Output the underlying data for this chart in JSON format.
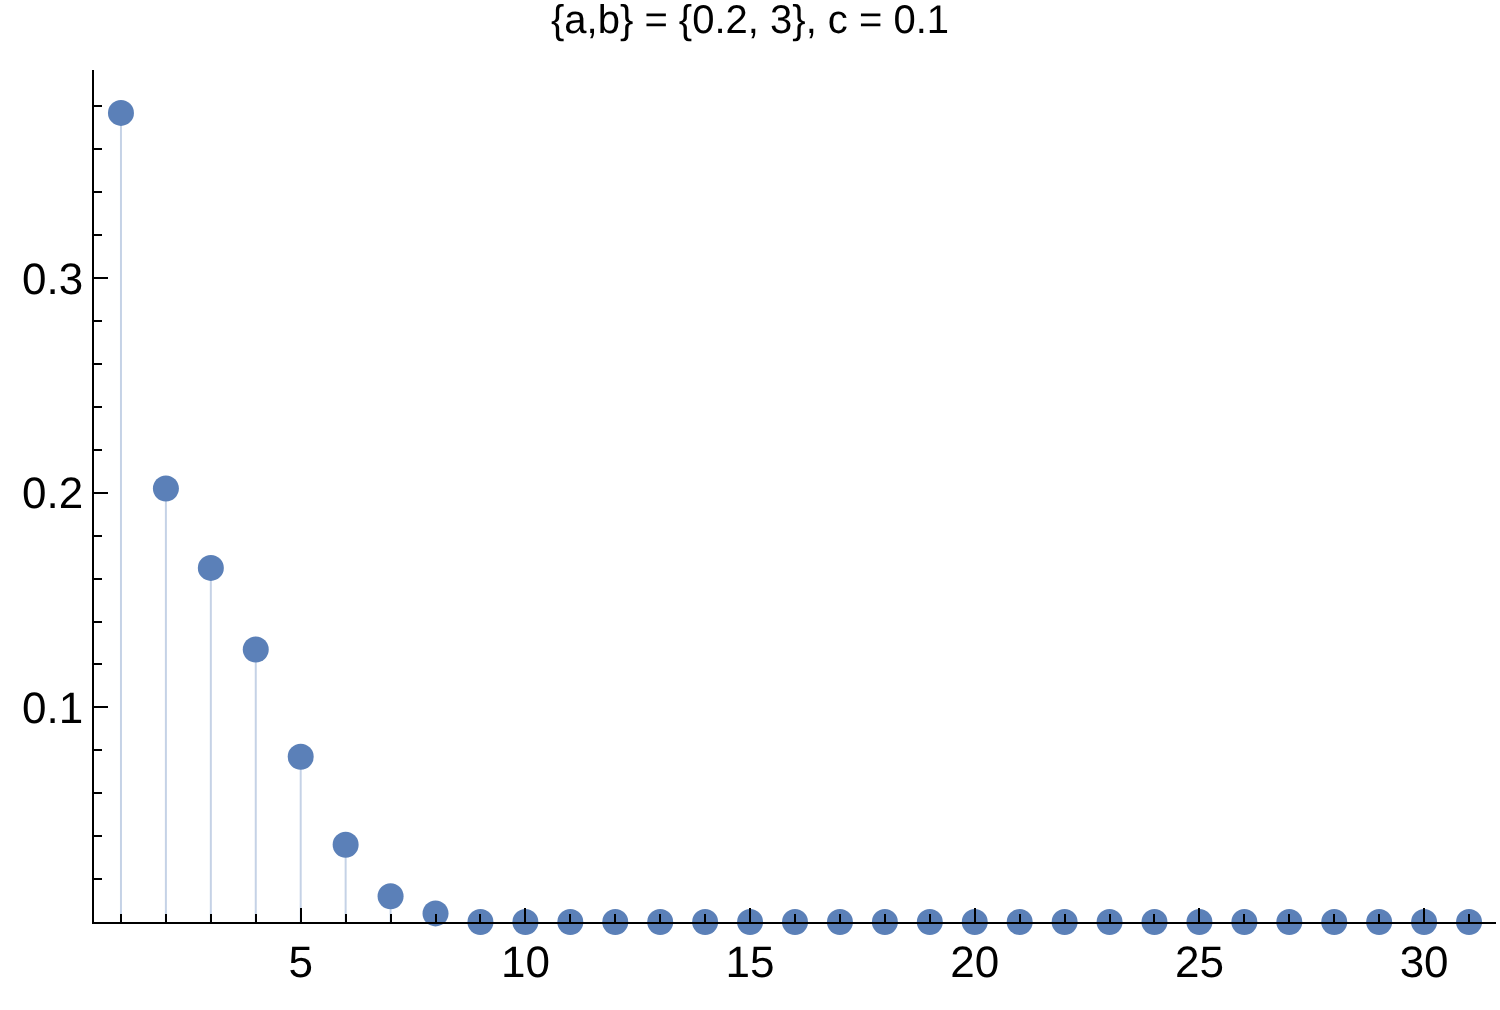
{
  "chart_data": {
    "type": "lollipop",
    "title": "{a,b} = {0.2, 3}, c = 0.1",
    "x": [
      1,
      2,
      3,
      4,
      5,
      6,
      7,
      8,
      9,
      10,
      11,
      12,
      13,
      14,
      15,
      16,
      17,
      18,
      19,
      20,
      21,
      22,
      23,
      24,
      25,
      26,
      27,
      28,
      29,
      30,
      31
    ],
    "series": [
      {
        "color": "#5b80b8",
        "values": [
          0.377,
          0.202,
          0.165,
          0.127,
          0.077,
          0.036,
          0.012,
          0.004,
          0,
          0,
          0,
          0,
          0,
          0,
          0,
          0,
          0,
          0,
          0,
          0,
          0,
          0,
          0,
          0,
          0,
          0,
          0,
          0,
          0,
          0,
          0
        ]
      }
    ],
    "xlim": [
      0.4,
      31.6
    ],
    "xticks": [
      {
        "value": 1,
        "label": null
      },
      {
        "value": 2,
        "label": null
      },
      {
        "value": 3,
        "label": null
      },
      {
        "value": 4,
        "label": null
      },
      5,
      {
        "value": 6,
        "label": null
      },
      {
        "value": 7,
        "label": null
      },
      {
        "value": 8,
        "label": null
      },
      {
        "value": 9,
        "label": null
      },
      10,
      {
        "value": 11,
        "label": null
      },
      {
        "value": 12,
        "label": null
      },
      {
        "value": 13,
        "label": null
      },
      {
        "value": 14,
        "label": null
      },
      15,
      {
        "value": 16,
        "label": null
      },
      {
        "value": 17,
        "label": null
      },
      {
        "value": 18,
        "label": null
      },
      {
        "value": 19,
        "label": null
      },
      20,
      {
        "value": 21,
        "label": null
      },
      {
        "value": 22,
        "label": null
      },
      {
        "value": 23,
        "label": null
      },
      {
        "value": 24,
        "label": null
      },
      25,
      {
        "value": 26,
        "label": null
      },
      {
        "value": 27,
        "label": null
      },
      {
        "value": 28,
        "label": null
      },
      {
        "value": 29,
        "label": null
      },
      30,
      {
        "value": 31,
        "label": null
      }
    ],
    "ylim": [
      0,
      0.397
    ],
    "yticks": [
      {
        "value": 0.02,
        "label": null
      },
      {
        "value": 0.04,
        "label": null
      },
      {
        "value": 0.06,
        "label": null
      },
      {
        "value": 0.08,
        "label": null
      },
      0.1,
      {
        "value": 0.12,
        "label": null
      },
      {
        "value": 0.14,
        "label": null
      },
      {
        "value": 0.16,
        "label": null
      },
      {
        "value": 0.18,
        "label": null
      },
      0.2,
      {
        "value": 0.22,
        "label": null
      },
      {
        "value": 0.24,
        "label": null
      },
      {
        "value": 0.26,
        "label": null
      },
      {
        "value": 0.28,
        "label": null
      },
      0.3,
      {
        "value": 0.32,
        "label": null
      },
      {
        "value": 0.34,
        "label": null
      },
      {
        "value": 0.36,
        "label": null
      },
      {
        "value": 0.38,
        "label": null
      }
    ],
    "marker": "circle"
  }
}
